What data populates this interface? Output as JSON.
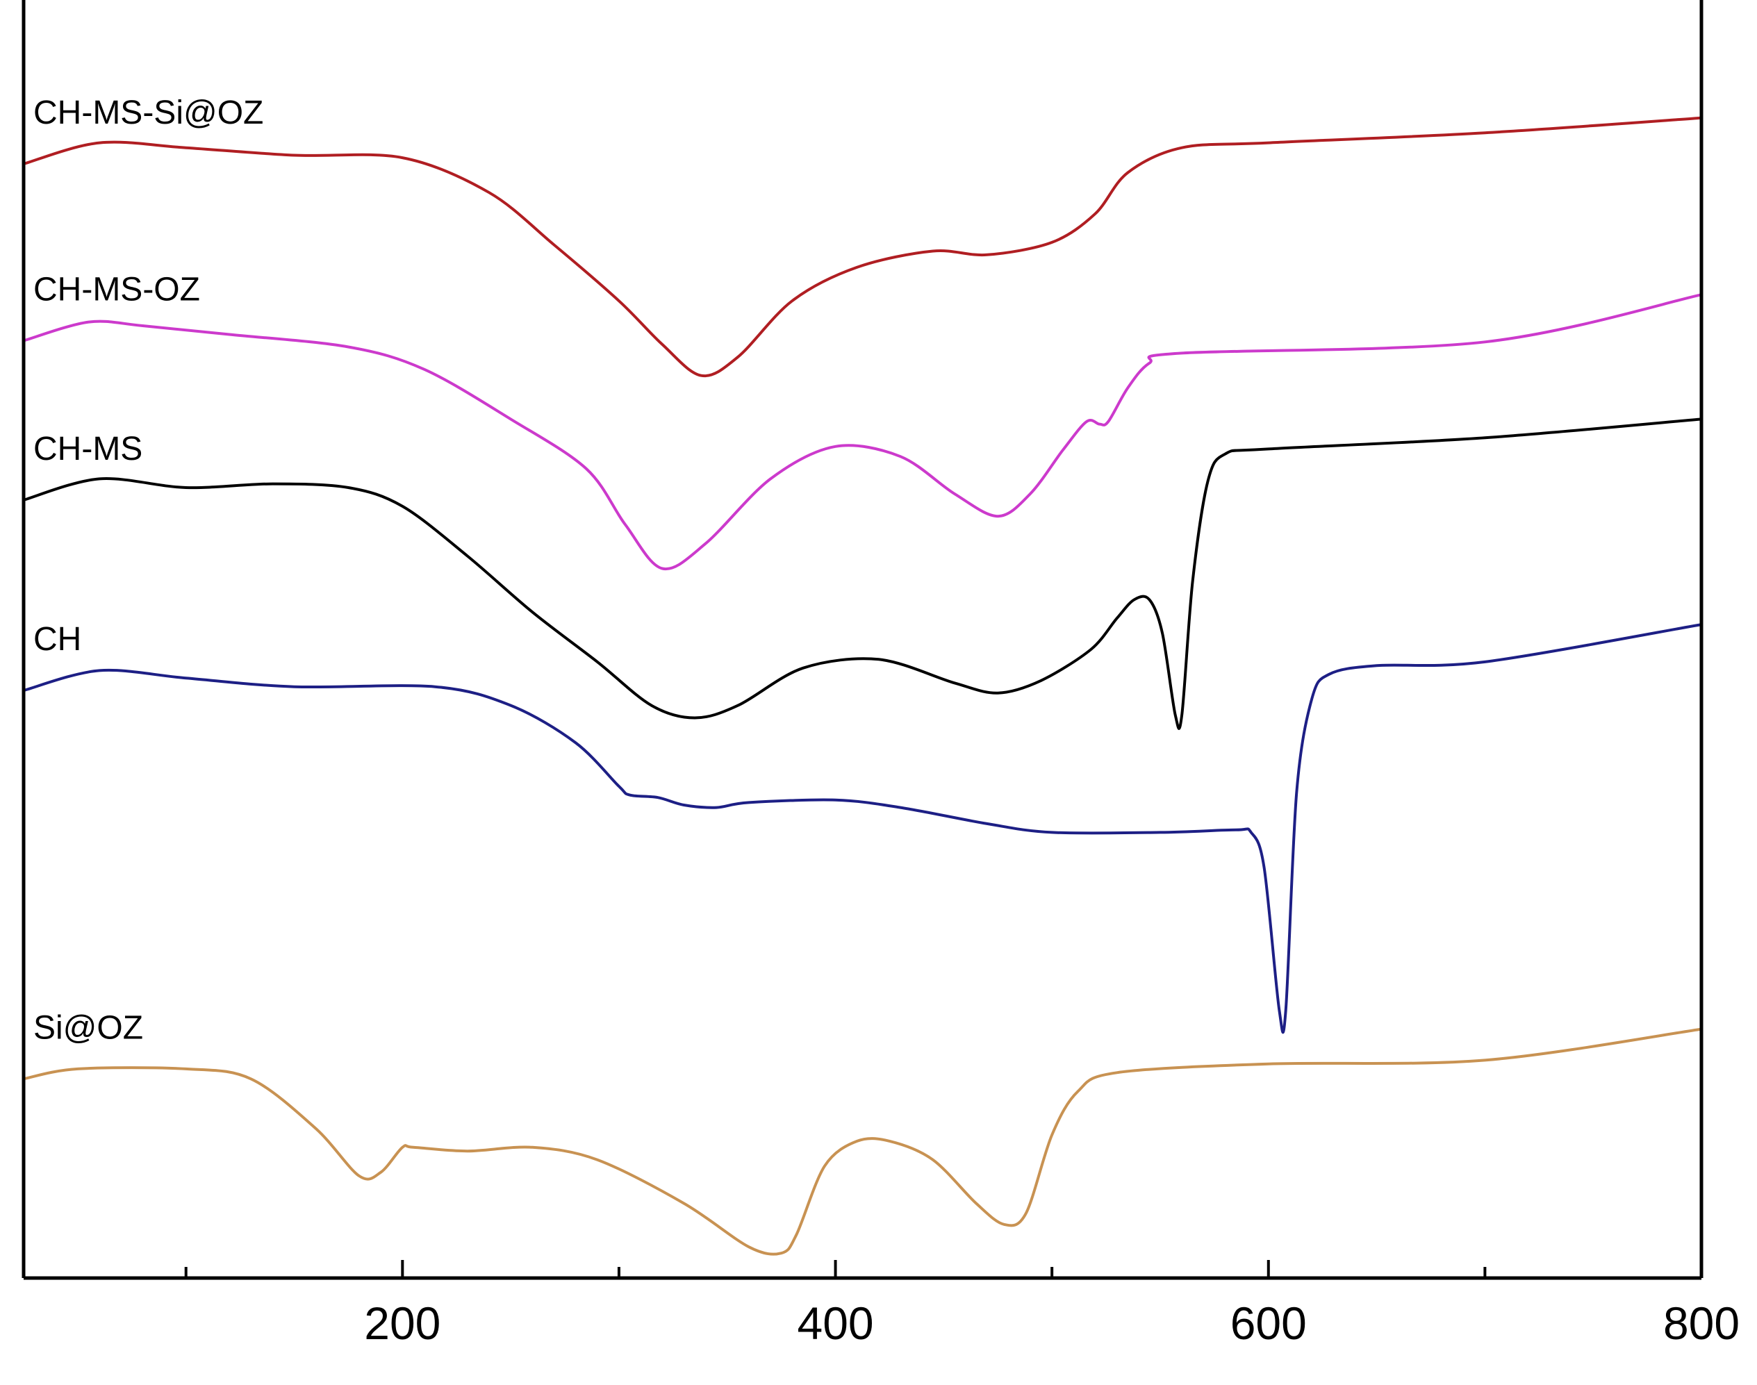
{
  "chart_data": {
    "type": "line",
    "title": "",
    "xlabel": "",
    "ylabel": "",
    "xlim": [
      25,
      800
    ],
    "ylim": [
      0,
      10.2
    ],
    "x_ticks_major": [
      200,
      400,
      600,
      800
    ],
    "x_ticks_minor": [
      100,
      300,
      500,
      700
    ],
    "y_ticks": [],
    "grid": false,
    "legend": "inline labels at left of each curve",
    "series": [
      {
        "name": "CH-MS-Si@OZ",
        "color": "#b01e22",
        "points": [
          [
            25,
            8.95
          ],
          [
            60,
            9.12
          ],
          [
            100,
            9.08
          ],
          [
            150,
            9.02
          ],
          [
            200,
            9.0
          ],
          [
            240,
            8.72
          ],
          [
            270,
            8.3
          ],
          [
            300,
            7.85
          ],
          [
            320,
            7.5
          ],
          [
            338,
            7.25
          ],
          [
            355,
            7.4
          ],
          [
            380,
            7.85
          ],
          [
            410,
            8.12
          ],
          [
            445,
            8.25
          ],
          [
            470,
            8.22
          ],
          [
            500,
            8.32
          ],
          [
            520,
            8.55
          ],
          [
            535,
            8.88
          ],
          [
            560,
            9.08
          ],
          [
            600,
            9.12
          ],
          [
            700,
            9.2
          ],
          [
            800,
            9.32
          ]
        ]
      },
      {
        "name": "CH-MS-OZ",
        "color": "#cc3acc",
        "points": [
          [
            25,
            7.53
          ],
          [
            55,
            7.68
          ],
          [
            80,
            7.65
          ],
          [
            120,
            7.58
          ],
          [
            175,
            7.48
          ],
          [
            210,
            7.3
          ],
          [
            250,
            6.9
          ],
          [
            285,
            6.5
          ],
          [
            303,
            6.05
          ],
          [
            320,
            5.7
          ],
          [
            340,
            5.9
          ],
          [
            370,
            6.42
          ],
          [
            400,
            6.68
          ],
          [
            430,
            6.6
          ],
          [
            455,
            6.3
          ],
          [
            475,
            6.12
          ],
          [
            490,
            6.3
          ],
          [
            505,
            6.65
          ],
          [
            516,
            6.88
          ],
          [
            522,
            6.86
          ],
          [
            526,
            6.88
          ],
          [
            535,
            7.15
          ],
          [
            545,
            7.35
          ],
          [
            560,
            7.43
          ],
          [
            700,
            7.52
          ],
          [
            800,
            7.9
          ]
        ]
      },
      {
        "name": "CH-MS",
        "color": "#000000",
        "points": [
          [
            25,
            6.25
          ],
          [
            60,
            6.42
          ],
          [
            100,
            6.35
          ],
          [
            140,
            6.38
          ],
          [
            175,
            6.35
          ],
          [
            200,
            6.2
          ],
          [
            230,
            5.8
          ],
          [
            260,
            5.35
          ],
          [
            290,
            4.95
          ],
          [
            315,
            4.6
          ],
          [
            335,
            4.5
          ],
          [
            355,
            4.6
          ],
          [
            385,
            4.9
          ],
          [
            420,
            4.97
          ],
          [
            455,
            4.78
          ],
          [
            475,
            4.7
          ],
          [
            495,
            4.8
          ],
          [
            518,
            5.05
          ],
          [
            530,
            5.3
          ],
          [
            538,
            5.45
          ],
          [
            545,
            5.45
          ],
          [
            551,
            5.18
          ],
          [
            557,
            4.52
          ],
          [
            560,
            4.52
          ],
          [
            565,
            5.6
          ],
          [
            572,
            6.4
          ],
          [
            580,
            6.62
          ],
          [
            600,
            6.66
          ],
          [
            700,
            6.75
          ],
          [
            800,
            6.9
          ]
        ]
      },
      {
        "name": "CH",
        "color": "#1d1f85",
        "points": [
          [
            25,
            4.72
          ],
          [
            60,
            4.88
          ],
          [
            100,
            4.82
          ],
          [
            150,
            4.75
          ],
          [
            215,
            4.75
          ],
          [
            250,
            4.6
          ],
          [
            280,
            4.3
          ],
          [
            300,
            3.95
          ],
          [
            305,
            3.88
          ],
          [
            318,
            3.86
          ],
          [
            330,
            3.8
          ],
          [
            345,
            3.78
          ],
          [
            360,
            3.82
          ],
          [
            400,
            3.84
          ],
          [
            430,
            3.78
          ],
          [
            470,
            3.65
          ],
          [
            500,
            3.58
          ],
          [
            550,
            3.58
          ],
          [
            585,
            3.6
          ],
          [
            592,
            3.58
          ],
          [
            598,
            3.3
          ],
          [
            605,
            2.15
          ],
          [
            608,
            2.15
          ],
          [
            613,
            3.9
          ],
          [
            620,
            4.65
          ],
          [
            628,
            4.85
          ],
          [
            650,
            4.92
          ],
          [
            700,
            4.95
          ],
          [
            800,
            5.25
          ]
        ]
      },
      {
        "name": "Si@OZ",
        "color": "#c89252",
        "points": [
          [
            25,
            1.6
          ],
          [
            50,
            1.68
          ],
          [
            100,
            1.68
          ],
          [
            130,
            1.6
          ],
          [
            160,
            1.2
          ],
          [
            180,
            0.82
          ],
          [
            190,
            0.85
          ],
          [
            200,
            1.05
          ],
          [
            205,
            1.05
          ],
          [
            230,
            1.02
          ],
          [
            260,
            1.05
          ],
          [
            290,
            0.95
          ],
          [
            330,
            0.6
          ],
          [
            360,
            0.25
          ],
          [
            375,
            0.2
          ],
          [
            382,
            0.35
          ],
          [
            395,
            0.9
          ],
          [
            410,
            1.1
          ],
          [
            425,
            1.1
          ],
          [
            445,
            0.95
          ],
          [
            465,
            0.6
          ],
          [
            478,
            0.43
          ],
          [
            488,
            0.52
          ],
          [
            500,
            1.15
          ],
          [
            512,
            1.5
          ],
          [
            530,
            1.65
          ],
          [
            600,
            1.72
          ],
          [
            700,
            1.75
          ],
          [
            800,
            2.0
          ]
        ]
      }
    ]
  }
}
